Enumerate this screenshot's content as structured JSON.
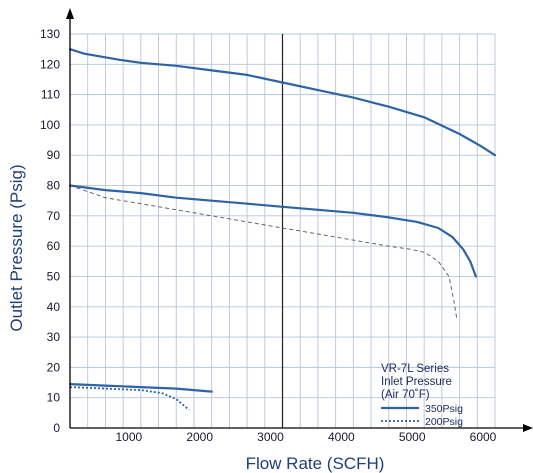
{
  "chart_data": {
    "type": "line",
    "xlabel": "Flow  Rate (SCFH)",
    "ylabel": "Outlet  Pressure (Psig)",
    "xlim": [
      0,
      6000
    ],
    "ylim": [
      0,
      130
    ],
    "x_ticks": [
      "1000",
      "2000",
      "3000",
      "4000",
      "5000",
      "6000"
    ],
    "y_ticks": [
      "0",
      "10",
      "20",
      "30",
      "40",
      "50",
      "60",
      "70",
      "80",
      "90",
      "100",
      "110",
      "120",
      "130"
    ],
    "grid": true,
    "reference_line_x": 3000,
    "legend": {
      "position": "bottom-right",
      "lines": [
        "VR-7L Series",
        "Inlet Pressure",
        "(Air 70˚F)"
      ],
      "entries": [
        "350Psig",
        "200Psig"
      ]
    },
    "series": [
      {
        "name": "350Psig",
        "style": "solid",
        "color": "#2e63a6",
        "points": [
          [
            0,
            125
          ],
          [
            200,
            123.5
          ],
          [
            700,
            121.5
          ],
          [
            1000,
            120.5
          ],
          [
            1500,
            119.5
          ],
          [
            2000,
            118
          ],
          [
            2500,
            116.5
          ],
          [
            3000,
            114
          ],
          [
            3500,
            111.5
          ],
          [
            4000,
            109
          ],
          [
            4500,
            106
          ],
          [
            5000,
            102.5
          ],
          [
            5500,
            97
          ],
          [
            5800,
            93
          ],
          [
            6000,
            90
          ]
        ]
      },
      {
        "name": "350Psig",
        "style": "solid",
        "color": "#2e63a6",
        "points": [
          [
            0,
            80
          ],
          [
            500,
            78.5
          ],
          [
            1000,
            77.5
          ],
          [
            1500,
            76
          ],
          [
            2000,
            75
          ],
          [
            2500,
            74
          ],
          [
            3000,
            73
          ],
          [
            3500,
            72
          ],
          [
            4000,
            71
          ],
          [
            4500,
            69.5
          ],
          [
            4900,
            68
          ],
          [
            5200,
            66
          ],
          [
            5400,
            63
          ],
          [
            5550,
            59
          ],
          [
            5650,
            55
          ],
          [
            5730,
            50
          ]
        ]
      },
      {
        "name": "350Psig",
        "style": "solid",
        "color": "#2e63a6",
        "points": [
          [
            0,
            14.5
          ],
          [
            500,
            14
          ],
          [
            1000,
            13.5
          ],
          [
            1500,
            13
          ],
          [
            2000,
            12
          ]
        ]
      },
      {
        "name": "200Psig",
        "style": "dotted",
        "color": "#2e63a6",
        "points": [
          [
            0,
            13.5
          ],
          [
            500,
            13
          ],
          [
            1000,
            12.5
          ],
          [
            1300,
            11.5
          ],
          [
            1500,
            9.5
          ],
          [
            1680,
            6
          ]
        ]
      },
      {
        "name": "200Psig",
        "style": "dashed-thin",
        "color": "#555555",
        "points": [
          [
            0,
            80
          ],
          [
            500,
            76
          ],
          [
            1000,
            74
          ],
          [
            1500,
            72
          ],
          [
            2000,
            70
          ],
          [
            2500,
            68
          ],
          [
            3000,
            66
          ],
          [
            3500,
            64
          ],
          [
            4000,
            62
          ],
          [
            4500,
            60
          ],
          [
            4800,
            59
          ],
          [
            5000,
            58
          ],
          [
            5200,
            55
          ],
          [
            5350,
            50
          ],
          [
            5420,
            42
          ],
          [
            5460,
            36
          ]
        ]
      }
    ]
  }
}
